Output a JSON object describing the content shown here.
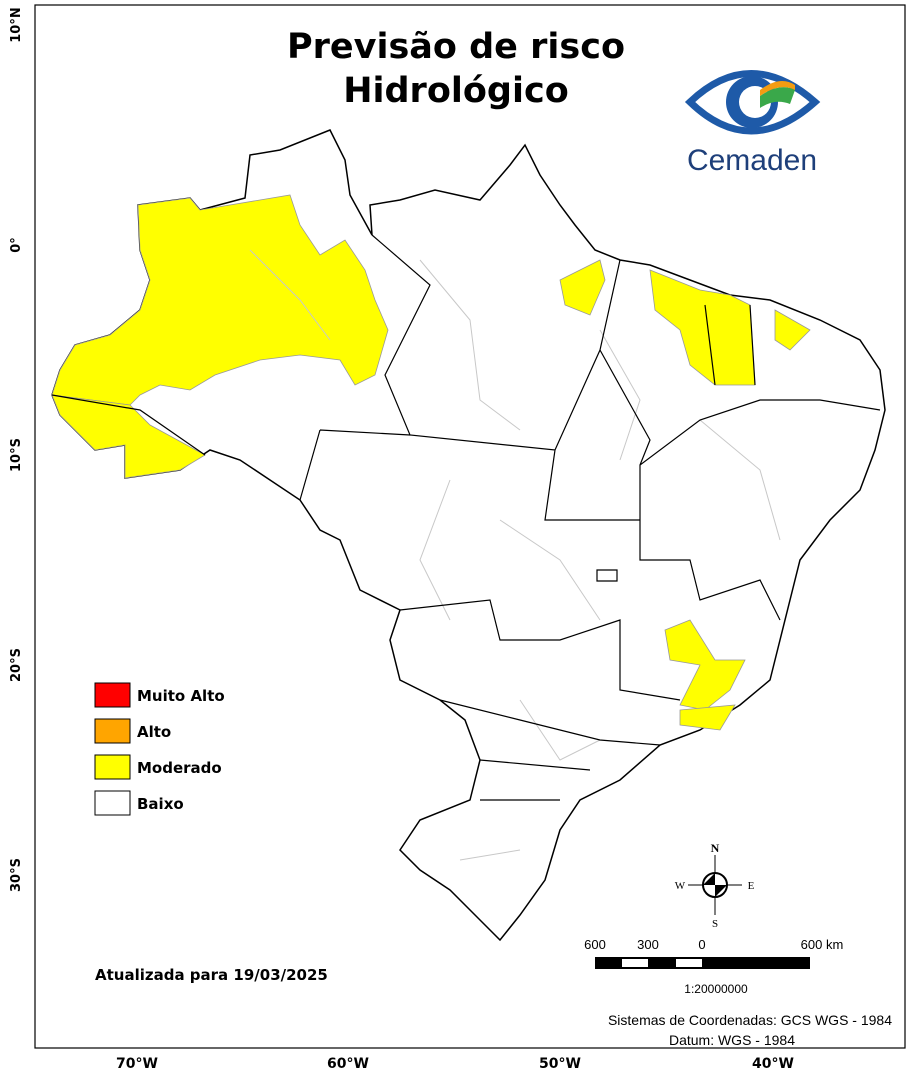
{
  "title": [
    "Previsão de risco",
    "Hidrológico"
  ],
  "logo": {
    "text": "Cemaden"
  },
  "legend": [
    {
      "label": "Muito Alto",
      "color": "#ff0000"
    },
    {
      "label": "Alto",
      "color": "#ffa500"
    },
    {
      "label": "Moderado",
      "color": "#ffff00"
    },
    {
      "label": "Baixo",
      "color": "#ffffff"
    }
  ],
  "updated": "Atualizada para 19/03/2025",
  "compass": {
    "north": "N",
    "south": "S",
    "west": "W",
    "east": "E"
  },
  "scale_bar": {
    "labels": [
      "600",
      "300",
      "0",
      "600 km"
    ],
    "ratio": "1:20000000"
  },
  "credits": [
    "Sistemas de Coordenadas: GCS WGS - 1984",
    "Datum: WGS - 1984"
  ],
  "lat_labels": [
    "10°N",
    "0°",
    "10°S",
    "20°S",
    "30°S"
  ],
  "lon_labels": [
    "70°W",
    "60°W",
    "50°W",
    "40°W"
  ]
}
